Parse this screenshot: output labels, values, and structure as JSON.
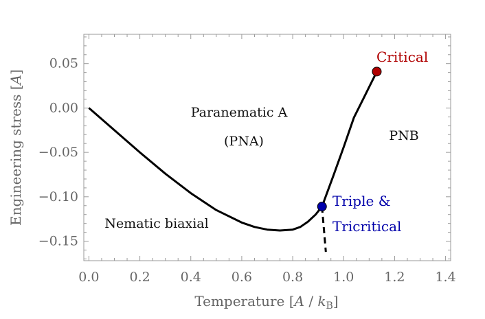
{
  "chart_data": {
    "type": "line",
    "xlabel": "Temperature [A / k_B]",
    "ylabel": "Engineering stress [A]",
    "xlim": [
      -0.02,
      1.42
    ],
    "ylim": [
      -0.172,
      0.083
    ],
    "x_ticks": [
      "0.0",
      "0.2",
      "0.4",
      "0.6",
      "0.8",
      "1.0",
      "1.2",
      "1.4"
    ],
    "x_tick_values": [
      0.0,
      0.2,
      0.4,
      0.6,
      0.8,
      1.0,
      1.2,
      1.4
    ],
    "y_ticks": [
      "0.05",
      "0.00",
      "−0.05",
      "−0.10",
      "−0.15"
    ],
    "y_tick_values": [
      0.05,
      0.0,
      -0.05,
      -0.1,
      -0.15
    ],
    "series": [
      {
        "style": "solid",
        "color": "#000000",
        "x": [
          0.0,
          0.1,
          0.2,
          0.3,
          0.4,
          0.5,
          0.6,
          0.65,
          0.7,
          0.75,
          0.8,
          0.83,
          0.86,
          0.89,
          0.915
        ],
        "y": [
          0.0,
          -0.025,
          -0.05,
          -0.074,
          -0.096,
          -0.115,
          -0.129,
          -0.134,
          -0.137,
          -0.138,
          -0.137,
          -0.134,
          -0.128,
          -0.12,
          -0.111
        ]
      },
      {
        "style": "solid",
        "color": "#000000",
        "x": [
          0.915,
          0.96,
          1.0,
          1.04,
          1.08,
          1.13
        ],
        "y": [
          -0.111,
          -0.076,
          -0.044,
          -0.011,
          0.012,
          0.041
        ]
      },
      {
        "style": "dashed",
        "color": "#000000",
        "x": [
          0.915,
          0.93
        ],
        "y": [
          -0.111,
          -0.162
        ]
      }
    ],
    "points": [
      {
        "name": "Critical",
        "x": 1.13,
        "y": 0.041,
        "color": "#b00000"
      },
      {
        "name": "Triple & Tricritical",
        "x": 0.915,
        "y": -0.111,
        "color": "#0000aa"
      }
    ],
    "regions": [
      {
        "lines": [
          "Paranematic A",
          "(PNA)"
        ]
      },
      {
        "lines": [
          "PNB"
        ]
      },
      {
        "lines": [
          "Nematic biaxial"
        ]
      }
    ],
    "point_labels": {
      "critical": "Critical",
      "triple_line1": "Triple &",
      "triple_line2": "Tricritical"
    },
    "grid": false,
    "legend": "none"
  }
}
